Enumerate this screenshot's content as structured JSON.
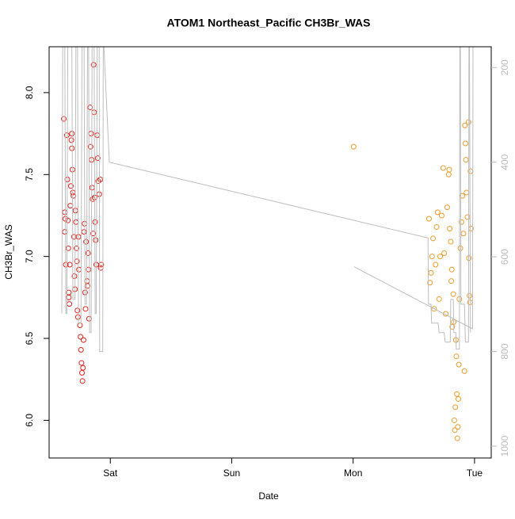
{
  "chart_data": {
    "type": "scatter",
    "title": "ATOM1 Northeast_Pacific CH3Br_WAS",
    "xlabel": "Date",
    "ylabel": "CH3Br_WAS",
    "xlim": [
      -12.1,
      75.3
    ],
    "xticks": [
      {
        "value": 0,
        "label": "Sat"
      },
      {
        "value": 24,
        "label": "Sun"
      },
      {
        "value": 48,
        "label": "Mon"
      },
      {
        "value": 72,
        "label": "Tue"
      }
    ],
    "ylim": [
      5.77,
      8.28
    ],
    "yticks": [
      {
        "value": 6,
        "label": "6.0"
      },
      6.5,
      {
        "value": 7,
        "label": "7.0"
      },
      7.5,
      {
        "value": 8,
        "label": "8.0"
      }
    ],
    "y2lim": [
      1025,
      156
    ],
    "y2ticks": [
      200,
      400,
      600,
      800,
      1000
    ],
    "series": [
      {
        "color": "#e8211a",
        "x": [
          -9.2,
          -9.0,
          -8.9,
          -9.0,
          -8.8,
          -8.6,
          -8.5,
          -8.4,
          -8.3,
          -8.2,
          -8.2,
          -8.1,
          -8.0,
          -7.9,
          -7.8,
          -7.7,
          -7.6,
          -7.6,
          -7.5,
          -7.4,
          -7.3,
          -7.2,
          -7.1,
          -7.0,
          -6.9,
          -6.8,
          -6.7,
          -6.6,
          -6.5,
          -6.4,
          -6.3,
          -6.2,
          -6.0,
          -5.9,
          -5.8,
          -5.7,
          -5.6,
          -5.5,
          -5.4,
          -5.3,
          -5.2,
          -5.1,
          -5.0,
          -4.9,
          -4.8,
          -4.6,
          -4.5,
          -4.4,
          -4.3,
          -4.2,
          -4.0,
          -3.9,
          -3.8,
          -3.7,
          -3.6,
          -3.5,
          -3.4,
          -3.3,
          -3.2,
          -3.1,
          -3.0,
          -2.9,
          -2.8,
          -2.6,
          -2.5,
          -2.4,
          -2.2,
          -2.0,
          -1.9,
          -1.8
        ],
        "values": [
          7.84,
          7.27,
          7.23,
          7.15,
          6.95,
          7.74,
          7.47,
          7.22,
          7.05,
          6.78,
          6.75,
          6.71,
          6.95,
          7.31,
          7.43,
          7.71,
          7.75,
          7.66,
          7.53,
          7.39,
          7.37,
          7.12,
          6.88,
          6.8,
          7.28,
          7.21,
          7.05,
          6.97,
          6.67,
          6.63,
          7.12,
          6.92,
          6.58,
          6.51,
          6.43,
          6.35,
          6.29,
          6.24,
          6.32,
          6.49,
          7.15,
          7.2,
          6.78,
          6.68,
          7.09,
          6.85,
          6.82,
          7.02,
          6.92,
          6.62,
          7.91,
          7.67,
          7.75,
          7.59,
          7.42,
          7.35,
          7.14,
          8.17,
          7.88,
          7.36,
          7.21,
          7.1,
          6.95,
          7.74,
          7.6,
          7.46,
          7.38,
          7.47,
          6.93,
          6.95
        ]
      },
      {
        "color": "#ee9a2a",
        "x": [
          48.1,
          63.0,
          63.2,
          63.4,
          63.6,
          63.8,
          64.0,
          64.3,
          64.5,
          64.7,
          65.0,
          65.2,
          65.5,
          65.8,
          66.0,
          66.3,
          66.6,
          66.9,
          67.0,
          67.1,
          67.3,
          67.4,
          67.5,
          67.6,
          67.8,
          67.9,
          68.0,
          68.1,
          68.2,
          68.3,
          68.4,
          68.5,
          68.6,
          68.7,
          68.8,
          68.9,
          69.0,
          69.2,
          69.4,
          69.6,
          69.8,
          70.0,
          70.1,
          70.2,
          70.3,
          70.4,
          70.6,
          70.8,
          70.9,
          71.0,
          71.1,
          71.2,
          71.3
        ],
        "values": [
          7.67,
          7.23,
          6.84,
          6.9,
          7.0,
          7.11,
          6.68,
          6.95,
          7.18,
          7.27,
          6.74,
          7.0,
          7.25,
          7.54,
          7.02,
          6.65,
          7.3,
          7.5,
          7.53,
          7.17,
          7.09,
          6.85,
          6.92,
          6.57,
          6.77,
          6.6,
          6.0,
          5.94,
          6.08,
          6.49,
          6.39,
          6.16,
          5.89,
          5.96,
          6.13,
          6.34,
          6.74,
          7.05,
          7.21,
          7.37,
          7.14,
          6.3,
          7.8,
          7.69,
          7.59,
          7.39,
          7.24,
          7.82,
          6.99,
          6.76,
          6.72,
          7.52,
          7.17
        ]
      },
      {
        "type": "line",
        "axis": "y2",
        "color": "#bdbdbd",
        "x": [
          -9.6,
          -9.4,
          -9.0,
          -8.8,
          -8.6,
          -8.4,
          -7.6,
          -7.4,
          -7.0,
          -6.8,
          -6.5,
          -6.3,
          -5.8,
          -5.6,
          -5.2,
          -5.0,
          -4.7,
          -4.5,
          -4.3,
          -4.1,
          -3.8,
          -3.6,
          -3.2,
          -3.0,
          -2.8,
          -2.6,
          -2.2,
          -2.1,
          -1.5,
          -1.4,
          -1.3,
          -0.2,
          62.8,
          62.9,
          63.4,
          63.5,
          64.8,
          65.0,
          66.0,
          66.2,
          67.2,
          67.3,
          67.8,
          67.9,
          68.3,
          68.4,
          69.0,
          69.1,
          69.2,
          69.3,
          70.0,
          70.2,
          70.8,
          70.9,
          71.0,
          71.2,
          null,
          48.2,
          71.6,
          71.7
        ],
        "values": [
          720,
          150,
          150,
          720,
          720,
          150,
          150,
          690,
          690,
          150,
          150,
          740,
          740,
          150,
          150,
          700,
          700,
          150,
          150,
          760,
          760,
          150,
          150,
          720,
          720,
          150,
          150,
          800,
          800,
          150,
          150,
          400,
          560,
          700,
          700,
          740,
          740,
          760,
          760,
          780,
          780,
          690,
          690,
          760,
          760,
          795,
          795,
          150,
          150,
          700,
          700,
          780,
          780,
          150,
          150,
          760,
          null,
          621,
          752,
          150
        ]
      }
    ]
  }
}
